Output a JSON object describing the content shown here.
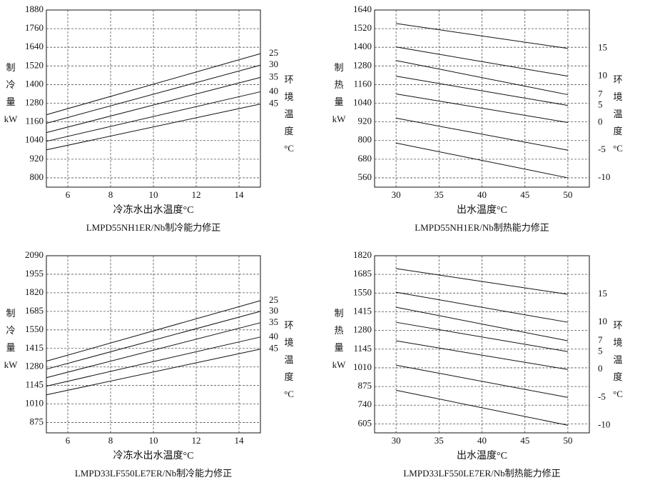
{
  "chart_data": [
    {
      "type": "line",
      "xlabel": "冷冻水出水温度°C",
      "caption": "LMPD55NH1ER/Nb制冷能力修正",
      "ylabel": [
        "制",
        "冷",
        "量",
        "kW"
      ],
      "y2label": [
        "环",
        "境",
        "温",
        "度",
        "°C"
      ],
      "x": [
        5,
        15
      ],
      "xlim": [
        5,
        15
      ],
      "xticks": [
        6,
        8,
        10,
        12,
        14
      ],
      "ylim": [
        740,
        1880
      ],
      "yticks": [
        800,
        920,
        1040,
        1160,
        1280,
        1400,
        1520,
        1640,
        1760,
        1880
      ],
      "grid": true,
      "series": [
        {
          "name": "25",
          "color": "#111111",
          "values": [
            1206,
            1599
          ]
        },
        {
          "name": "30",
          "color": "#111111",
          "values": [
            1151,
            1525
          ]
        },
        {
          "name": "35",
          "color": "#111111",
          "values": [
            1091,
            1446
          ]
        },
        {
          "name": "40",
          "color": "#111111",
          "values": [
            1035,
            1354
          ]
        },
        {
          "name": "45",
          "color": "#111111",
          "values": [
            980,
            1275
          ]
        }
      ]
    },
    {
      "type": "line",
      "xlabel": "出水温度°C",
      "caption": "LMPD55NH1ER/Nb制热能力修正",
      "ylabel": [
        "制",
        "热",
        "量",
        "kW"
      ],
      "y2label": [
        "环",
        "境",
        "温",
        "度",
        "°C"
      ],
      "x": [
        30,
        50
      ],
      "xlim": [
        27.5,
        52.5
      ],
      "xticks": [
        30,
        35,
        40,
        45,
        50
      ],
      "ylim": [
        500,
        1640
      ],
      "yticks": [
        560,
        680,
        800,
        920,
        1040,
        1160,
        1280,
        1400,
        1520,
        1640
      ],
      "grid": true,
      "series": [
        {
          "name": "15",
          "color": "#111111",
          "values": [
            1553,
            1393
          ]
        },
        {
          "name": "10",
          "color": "#111111",
          "values": [
            1402,
            1214
          ]
        },
        {
          "name": "7",
          "color": "#111111",
          "values": [
            1315,
            1095
          ]
        },
        {
          "name": "5",
          "color": "#111111",
          "values": [
            1214,
            1026
          ]
        },
        {
          "name": "0",
          "color": "#111111",
          "values": [
            1100,
            916
          ]
        },
        {
          "name": "-5",
          "color": "#111111",
          "values": [
            944,
            738
          ]
        },
        {
          "name": "-10",
          "color": "#111111",
          "values": [
            784,
            560
          ]
        }
      ]
    },
    {
      "type": "line",
      "xlabel": "冷冻水出水温度°C",
      "caption": "LMPD33LF550LE7ER/Nb制冷能力修正",
      "ylabel": [
        "制",
        "冷",
        "量",
        "kW"
      ],
      "y2label": [
        "环",
        "境",
        "温",
        "度",
        "°C"
      ],
      "x": [
        5,
        15
      ],
      "xlim": [
        5,
        15
      ],
      "xticks": [
        6,
        8,
        10,
        12,
        14
      ],
      "ylim": [
        800,
        2090
      ],
      "yticks": [
        875,
        1010,
        1145,
        1280,
        1415,
        1550,
        1685,
        1820,
        1955,
        2090
      ],
      "grid": true,
      "series": [
        {
          "name": "25",
          "color": "#111111",
          "values": [
            1322,
            1763
          ]
        },
        {
          "name": "30",
          "color": "#111111",
          "values": [
            1264,
            1685
          ]
        },
        {
          "name": "35",
          "color": "#111111",
          "values": [
            1202,
            1602
          ]
        },
        {
          "name": "40",
          "color": "#111111",
          "values": [
            1140,
            1498
          ]
        },
        {
          "name": "45",
          "color": "#111111",
          "values": [
            1077,
            1410
          ]
        }
      ]
    },
    {
      "type": "line",
      "xlabel": "出水温度°C",
      "caption": "LMPD33LF550LE7ER/Nb制热能力修正",
      "ylabel": [
        "制",
        "热",
        "量",
        "kW"
      ],
      "y2label": [
        "环",
        "境",
        "温",
        "度",
        "°C"
      ],
      "x": [
        30,
        50
      ],
      "xlim": [
        27.5,
        52.5
      ],
      "xticks": [
        30,
        35,
        40,
        45,
        50
      ],
      "ylim": [
        540,
        1820
      ],
      "yticks": [
        605,
        740,
        875,
        1010,
        1145,
        1280,
        1415,
        1550,
        1685,
        1820
      ],
      "grid": true,
      "series": [
        {
          "name": "15",
          "color": "#111111",
          "values": [
            1727,
            1541
          ]
        },
        {
          "name": "10",
          "color": "#111111",
          "values": [
            1556,
            1339
          ]
        },
        {
          "name": "7",
          "color": "#111111",
          "values": [
            1448,
            1205
          ]
        },
        {
          "name": "5",
          "color": "#111111",
          "values": [
            1339,
            1127
          ]
        },
        {
          "name": "0",
          "color": "#111111",
          "values": [
            1205,
            998
          ]
        },
        {
          "name": "-5",
          "color": "#111111",
          "values": [
            1029,
            796
          ]
        },
        {
          "name": "-10",
          "color": "#111111",
          "values": [
            848,
            595
          ]
        }
      ]
    }
  ]
}
